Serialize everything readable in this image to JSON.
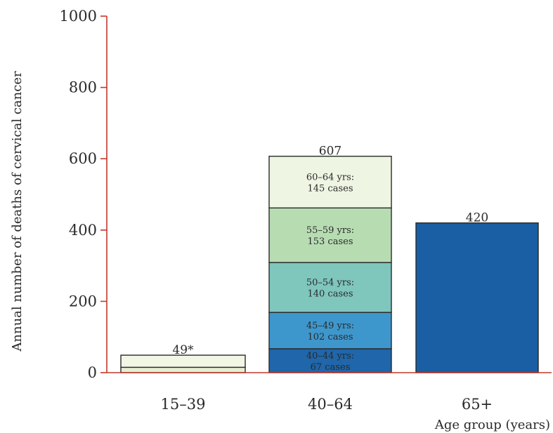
{
  "chart_data": {
    "type": "bar",
    "stacked": true,
    "title": "",
    "ylabel": "Annual number of deaths of cervical cancer",
    "xlabel": "Age group (years)",
    "ylim": [
      0,
      1000
    ],
    "yticks": [
      0,
      200,
      400,
      600,
      800,
      1000
    ],
    "grid": false,
    "categories": [
      {
        "label": "15–39",
        "total": 49,
        "total_label": "49*",
        "segments": [
          {
            "value": 15,
            "color": "#e6efd2",
            "label_line1": "",
            "label_line2": ""
          },
          {
            "value": 34,
            "color": "#f2f6e4",
            "label_line1": "",
            "label_line2": ""
          }
        ]
      },
      {
        "label": "40–64",
        "total": 607,
        "total_label": "607",
        "segments": [
          {
            "value": 67,
            "color": "#1f66ab",
            "label_line1": "40–44 yrs:",
            "label_line2": "67 cases"
          },
          {
            "value": 102,
            "color": "#3e97cc",
            "label_line1": "45–49 yrs:",
            "label_line2": "102 cases"
          },
          {
            "value": 140,
            "color": "#7fc6bd",
            "label_line1": "50–54 yrs:",
            "label_line2": "140 cases"
          },
          {
            "value": 153,
            "color": "#b7dcb2",
            "label_line1": "55–59 yrs:",
            "label_line2": "153 cases"
          },
          {
            "value": 145,
            "color": "#eef5e3",
            "label_line1": "60–64 yrs:",
            "label_line2": "145 cases"
          }
        ]
      },
      {
        "label": "65+",
        "total": 420,
        "total_label": "420",
        "segments": [
          {
            "value": 420,
            "color": "#1a5ea3",
            "label_line1": "",
            "label_line2": ""
          }
        ]
      }
    ],
    "colors": {
      "axis": "#c0392b",
      "bar_stroke": "#2a2a2a",
      "text": "#2a2a2a"
    }
  }
}
